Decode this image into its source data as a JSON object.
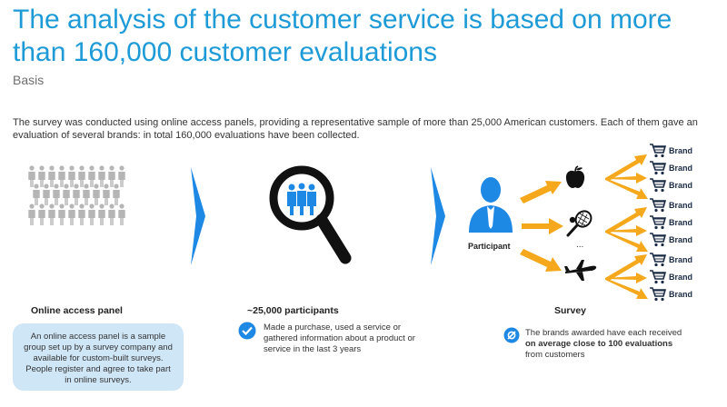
{
  "title": "The analysis of the customer service is based on more than 160,000 customer evaluations",
  "subtitle": "Basis",
  "intro": "The survey was conducted using online access panels, providing a representative sample of more than 25,000 American customers. Each of them gave an evaluation of several brands: in total 160,000 evaluations have been collected.",
  "steps": [
    {
      "label": "Online access panel",
      "description": "An online access panel is a sample group set up by a survey company and available for custom-built surveys. People register and agree to take part in online surveys.",
      "icon": "crowd-icon"
    },
    {
      "label": "~25,000 participants",
      "description": "Made a purchase, used a service or gathered information about a product or service in the last 3 years",
      "icon": "magnifier-people-icon"
    },
    {
      "label": "Survey",
      "description_pre": "The brands awarded have each received ",
      "description_bold": "on average close to 100 evaluations",
      "description_post": " from customers",
      "icon": "participant-icon"
    }
  ],
  "participant_label": "Participant",
  "ellipsis": "...",
  "brand_label": "Brand",
  "colors": {
    "title": "#1e9bd7",
    "chevron": "#1e88e5",
    "icon_blue": "#1e88e5",
    "arrow": "#f5a81c",
    "crowd": "#b5b5b5",
    "panel_bg": "#cfe6f7",
    "navy": "#1a2a44"
  }
}
